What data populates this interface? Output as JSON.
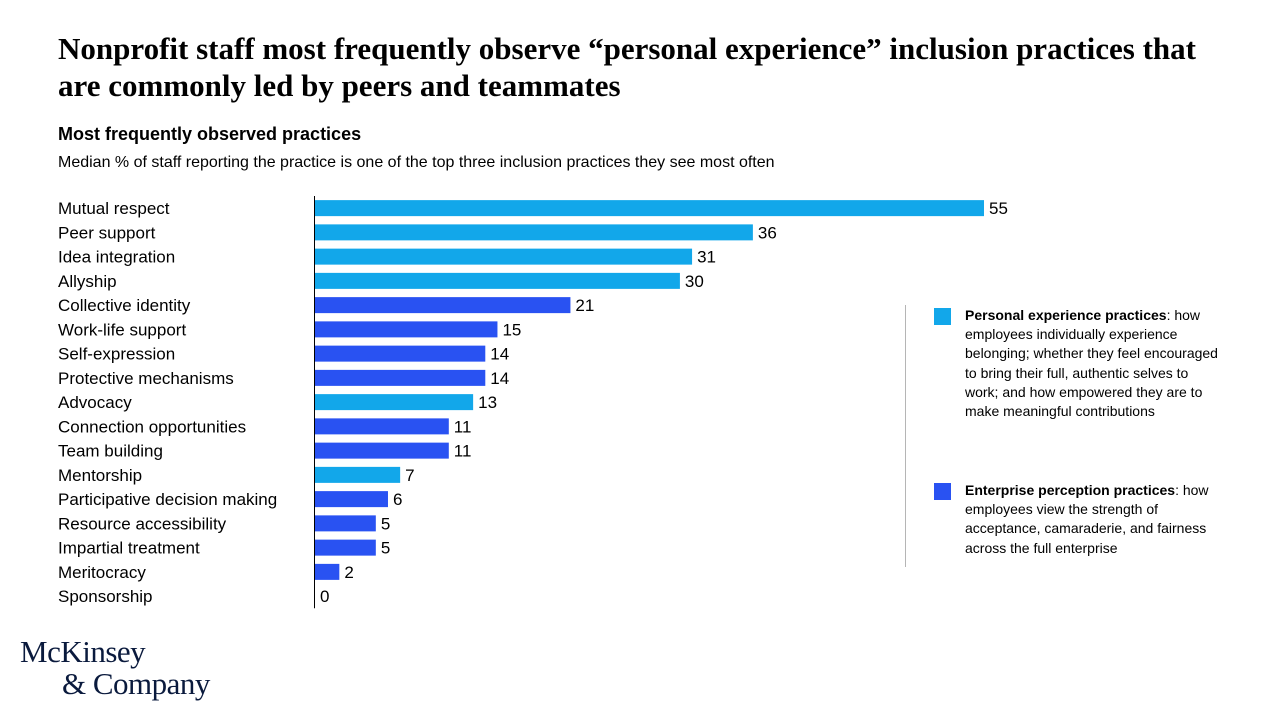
{
  "header": {
    "title": "Nonprofit staff most frequently observe “personal experience” inclusion practices that are commonly led by peers and teammates",
    "subtitle": "Most frequently observed practices",
    "caption": "Median % of staff reporting the practice is one of the top three inclusion practices they see most often"
  },
  "colors": {
    "personal": "#12A7EA",
    "enterprise": "#2952F2",
    "axis": "#000000"
  },
  "chart_data": {
    "type": "bar",
    "orientation": "horizontal",
    "title": "Most frequently observed practices",
    "ylabel": "",
    "xlabel": "Median % of staff reporting the practice is one of the top three inclusion practices they see most often",
    "xlim": [
      0,
      55
    ],
    "categories": [
      "Mutual respect",
      "Peer support",
      "Idea integration",
      "Allyship",
      "Collective identity",
      "Work-life support",
      "Self-expression",
      "Protective mechanisms",
      "Advocacy",
      "Connection opportunities",
      "Team building",
      "Mentorship",
      "Participative decision making",
      "Resource accessibility",
      "Impartial treatment",
      "Meritocracy",
      "Sponsorship"
    ],
    "values": [
      55,
      36,
      31,
      30,
      21,
      15,
      14,
      14,
      13,
      11,
      11,
      7,
      6,
      5,
      5,
      2,
      0
    ],
    "groups": [
      "personal",
      "personal",
      "personal",
      "personal",
      "enterprise",
      "enterprise",
      "enterprise",
      "enterprise",
      "personal",
      "enterprise",
      "enterprise",
      "personal",
      "enterprise",
      "enterprise",
      "enterprise",
      "enterprise",
      "enterprise"
    ]
  },
  "legend": [
    {
      "key": "personal",
      "name": "Personal experience practices",
      "description": ": how employees individually experience belonging; whether they feel encouraged to bring their full, authentic selves to work; and how empowered they are to make meaningful contributions"
    },
    {
      "key": "enterprise",
      "name": "Enterprise perception practices",
      "description": ": how employees view the strength of acceptance, camaraderie, and fairness across the full enterprise"
    }
  ],
  "brand": {
    "line1": "McKinsey",
    "line2": "& Company"
  }
}
